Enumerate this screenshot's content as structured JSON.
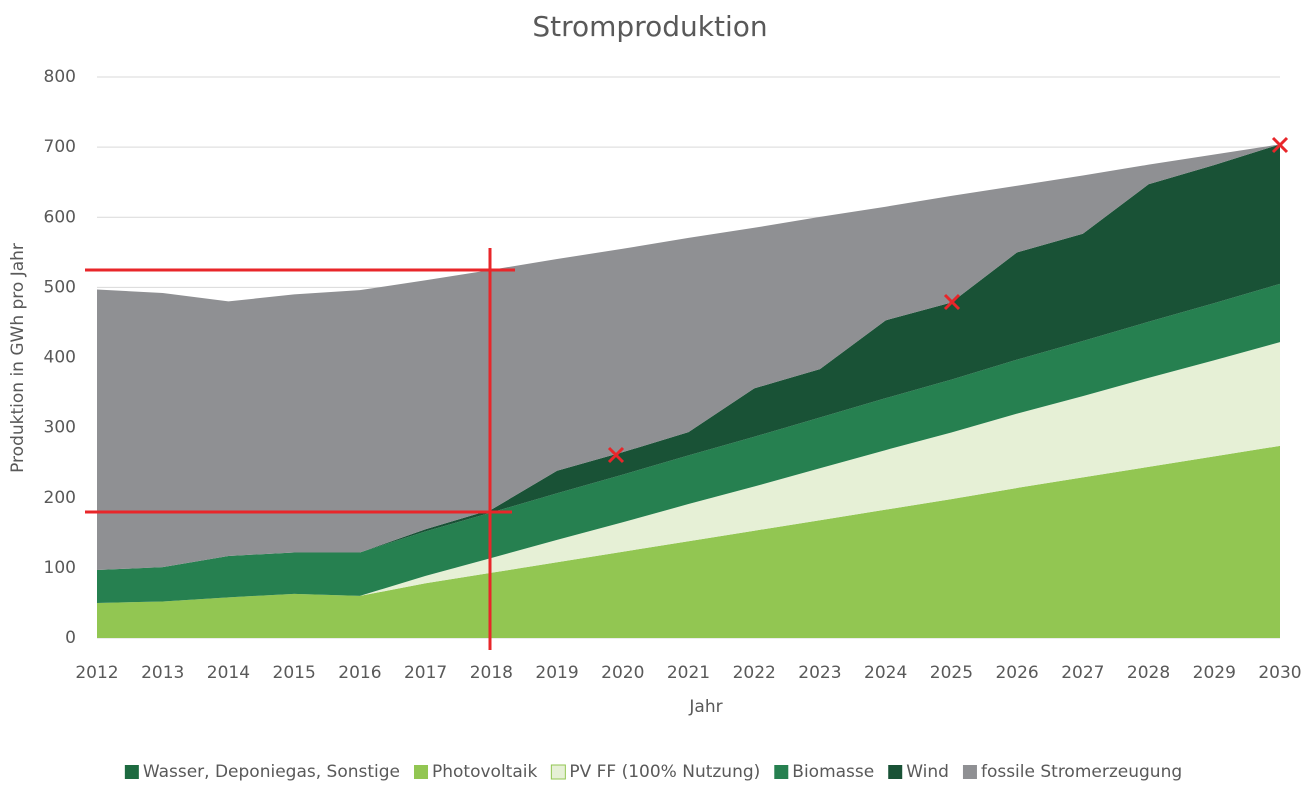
{
  "chart_data": {
    "type": "area",
    "title": "Stromproduktion",
    "x_label": "Jahr",
    "y_label": "Produktion in GWh pro Jahr",
    "categories": [
      "2012",
      "2013",
      "2014",
      "2015",
      "2016",
      "2017",
      "2018",
      "2019",
      "2020",
      "2021",
      "2022",
      "2023",
      "2024",
      "2025",
      "2026",
      "2027",
      "2028",
      "2029",
      "2030"
    ],
    "stacked": true,
    "grid": true,
    "legend": "bottom",
    "ylim": [
      0,
      800
    ],
    "yticks": [
      0,
      100,
      200,
      300,
      400,
      500,
      600,
      700,
      800
    ],
    "series": [
      {
        "name": "Wasser, Deponiegas, Sonstige",
        "color": "#1d6a40",
        "values": [
          0,
          0,
          0,
          0,
          0,
          0,
          0,
          0,
          0,
          0,
          0,
          0,
          0,
          0,
          0,
          0,
          0,
          0,
          0
        ]
      },
      {
        "name": "Photovoltaik",
        "color": "#92c652",
        "values": [
          50,
          52,
          58,
          63,
          60,
          78,
          93,
          108,
          123,
          138,
          153,
          168,
          183,
          198,
          214,
          229,
          244,
          259,
          274
        ]
      },
      {
        "name": "PV FF (100% Nutzung)",
        "color": "#e6f0d6",
        "values": [
          0,
          0,
          0,
          0,
          0,
          10.6,
          21,
          32,
          42,
          53,
          63,
          74,
          85,
          95,
          106,
          116,
          127,
          137,
          148
        ]
      },
      {
        "name": "Biomasse",
        "color": "#268050",
        "values": [
          47,
          49,
          59,
          59,
          62,
          63.5,
          65,
          66.5,
          68,
          69.5,
          71,
          72.5,
          74,
          75.5,
          77,
          78.5,
          80,
          81.5,
          83
        ]
      },
      {
        "name": "Wind",
        "color": "#195236",
        "values": [
          0,
          0,
          0,
          0,
          0,
          3,
          4,
          32,
          32,
          33,
          69,
          69,
          111,
          110,
          153,
          153,
          196,
          197,
          199
        ]
      },
      {
        "name": "fossile Stromerzeugung",
        "color": "#8f9093",
        "values": [
          400,
          391,
          363,
          368,
          374,
          355,
          342,
          302,
          290,
          277,
          229,
          217,
          162,
          152,
          95,
          83,
          28,
          15,
          0
        ]
      }
    ]
  }
}
